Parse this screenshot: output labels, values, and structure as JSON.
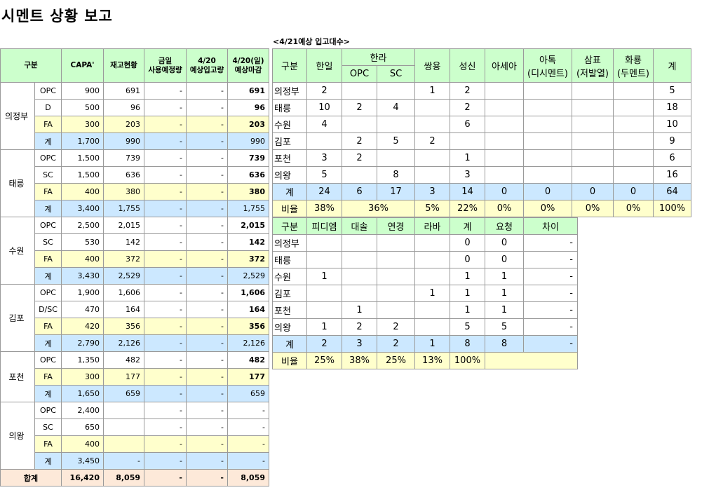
{
  "title": "시멘트 상황 보고",
  "subtitle": "<4/21예상 입고대수>",
  "left": {
    "headers": [
      "구분",
      "CAPA'",
      "재고현황",
      "금일\n사용예정량",
      "4/20\n예상입고량",
      "4/20(일)\n예상마감"
    ],
    "regions": [
      {
        "name": "의정부",
        "rows": [
          {
            "type": "OPC",
            "capa": "900",
            "stock": "691",
            "use": "-",
            "in": "-",
            "close": "691",
            "bold": true
          },
          {
            "type": "D",
            "capa": "500",
            "stock": "96",
            "use": "-",
            "in": "-",
            "close": "96",
            "bold": true
          },
          {
            "type": "FA",
            "capa": "300",
            "stock": "203",
            "use": "-",
            "in": "-",
            "close": "203",
            "bold": true
          },
          {
            "type": "계",
            "capa": "1,700",
            "stock": "990",
            "use": "-",
            "in": "-",
            "close": "990",
            "bold": false
          }
        ]
      },
      {
        "name": "태릉",
        "rows": [
          {
            "type": "OPC",
            "capa": "1,500",
            "stock": "739",
            "use": "-",
            "in": "-",
            "close": "739",
            "bold": true
          },
          {
            "type": "SC",
            "capa": "1,500",
            "stock": "636",
            "use": "-",
            "in": "-",
            "close": "636",
            "bold": true
          },
          {
            "type": "FA",
            "capa": "400",
            "stock": "380",
            "use": "-",
            "in": "-",
            "close": "380",
            "bold": true
          },
          {
            "type": "계",
            "capa": "3,400",
            "stock": "1,755",
            "use": "-",
            "in": "-",
            "close": "1,755",
            "bold": false
          }
        ]
      },
      {
        "name": "수원",
        "rows": [
          {
            "type": "OPC",
            "capa": "2,500",
            "stock": "2,015",
            "use": "-",
            "in": "-",
            "close": "2,015",
            "bold": true
          },
          {
            "type": "SC",
            "capa": "530",
            "stock": "142",
            "use": "-",
            "in": "-",
            "close": "142",
            "bold": true
          },
          {
            "type": "FA",
            "capa": "400",
            "stock": "372",
            "use": "-",
            "in": "-",
            "close": "372",
            "bold": true
          },
          {
            "type": "계",
            "capa": "3,430",
            "stock": "2,529",
            "use": "-",
            "in": "-",
            "close": "2,529",
            "bold": false
          }
        ]
      },
      {
        "name": "김포",
        "rows": [
          {
            "type": "OPC",
            "capa": "1,900",
            "stock": "1,606",
            "use": "-",
            "in": "-",
            "close": "1,606",
            "bold": true
          },
          {
            "type": "D/SC",
            "capa": "470",
            "stock": "164",
            "use": "-",
            "in": "-",
            "close": "164",
            "bold": true
          },
          {
            "type": "FA",
            "capa": "420",
            "stock": "356",
            "use": "-",
            "in": "-",
            "close": "356",
            "bold": true
          },
          {
            "type": "계",
            "capa": "2,790",
            "stock": "2,126",
            "use": "-",
            "in": "-",
            "close": "2,126",
            "bold": false
          }
        ]
      },
      {
        "name": "포천",
        "rows": [
          {
            "type": "OPC",
            "capa": "1,350",
            "stock": "482",
            "use": "-",
            "in": "-",
            "close": "482",
            "bold": true
          },
          {
            "type": "FA",
            "capa": "300",
            "stock": "177",
            "use": "-",
            "in": "-",
            "close": "177",
            "bold": true
          },
          {
            "type": "계",
            "capa": "1,650",
            "stock": "659",
            "use": "-",
            "in": "-",
            "close": "659",
            "bold": false
          }
        ]
      },
      {
        "name": "의왕",
        "rows": [
          {
            "type": "OPC",
            "capa": "2,400",
            "stock": "",
            "use": "-",
            "in": "-",
            "close": "-",
            "bold": false
          },
          {
            "type": "SC",
            "capa": "650",
            "stock": "",
            "use": "-",
            "in": "-",
            "close": "-",
            "bold": false
          },
          {
            "type": "FA",
            "capa": "400",
            "stock": "",
            "use": "-",
            "in": "-",
            "close": "-",
            "bold": false
          },
          {
            "type": "계",
            "capa": "3,450",
            "stock": "-",
            "use": "-",
            "in": "-",
            "close": "-",
            "bold": false
          }
        ]
      }
    ],
    "total": {
      "label": "합계",
      "capa": "16,420",
      "stock": "8,059",
      "use": "-",
      "in": "-",
      "close": "8,059"
    }
  },
  "rt": {
    "h": {
      "gubun": "구분",
      "hanil": "한일",
      "halla": "한라",
      "opc": "OPC",
      "sc": "SC",
      "ssangyong": "쌍용",
      "sungshin": "성신",
      "asia": "아세아",
      "ahtuk": "아톡",
      "ahtuk_sub": "(디시멘트)",
      "sampyo": "삼표",
      "sampyo_sub": "(저발열)",
      "hwaryong": "화룡",
      "hwaryong_sub": "(두멘트)",
      "total": "계"
    },
    "rows": [
      [
        "의정부",
        "2",
        "",
        "",
        "1",
        "2",
        "",
        "",
        "",
        "",
        "5"
      ],
      [
        "태릉",
        "10",
        "2",
        "4",
        "",
        "2",
        "",
        "",
        "",
        "",
        "18"
      ],
      [
        "수원",
        "4",
        "",
        "",
        "",
        "6",
        "",
        "",
        "",
        "",
        "10"
      ],
      [
        "김포",
        "",
        "2",
        "5",
        "2",
        "",
        "",
        "",
        "",
        "",
        "9"
      ],
      [
        "포천",
        "3",
        "2",
        "",
        "",
        "1",
        "",
        "",
        "",
        "",
        "6"
      ],
      [
        "의왕",
        "5",
        "",
        "8",
        "",
        "3",
        "",
        "",
        "",
        "",
        "16"
      ]
    ],
    "sum": [
      "계",
      "24",
      "6",
      "17",
      "3",
      "14",
      "0",
      "0",
      "0",
      "0",
      "64"
    ],
    "ratio": {
      "label": "비율",
      "hanil": "38%",
      "halla": "36%",
      "ssangyong": "5%",
      "sungshin": "22%",
      "asia": "0%",
      "ahtuk": "0%",
      "sampyo": "0%",
      "hwaryong": "0%",
      "total": "100%"
    }
  },
  "rb": {
    "headers": [
      "구분",
      "피디엠",
      "대솔",
      "연경",
      "라바",
      "계",
      "요청",
      "차이"
    ],
    "rows": [
      [
        "의정부",
        "",
        "",
        "",
        "",
        "0",
        "0",
        "-"
      ],
      [
        "태릉",
        "",
        "",
        "",
        "",
        "0",
        "0",
        "-"
      ],
      [
        "수원",
        "1",
        "",
        "",
        "",
        "1",
        "1",
        "-"
      ],
      [
        "김포",
        "",
        "",
        "",
        "1",
        "1",
        "1",
        "-"
      ],
      [
        "포천",
        "",
        "1",
        "",
        "",
        "1",
        "1",
        "-"
      ],
      [
        "의왕",
        "1",
        "2",
        "2",
        "",
        "5",
        "5",
        "-"
      ]
    ],
    "sum": [
      "계",
      "2",
      "3",
      "2",
      "1",
      "8",
      "8",
      "-"
    ],
    "ratio": [
      "비율",
      "25%",
      "38%",
      "25%",
      "13%",
      "100%"
    ]
  }
}
